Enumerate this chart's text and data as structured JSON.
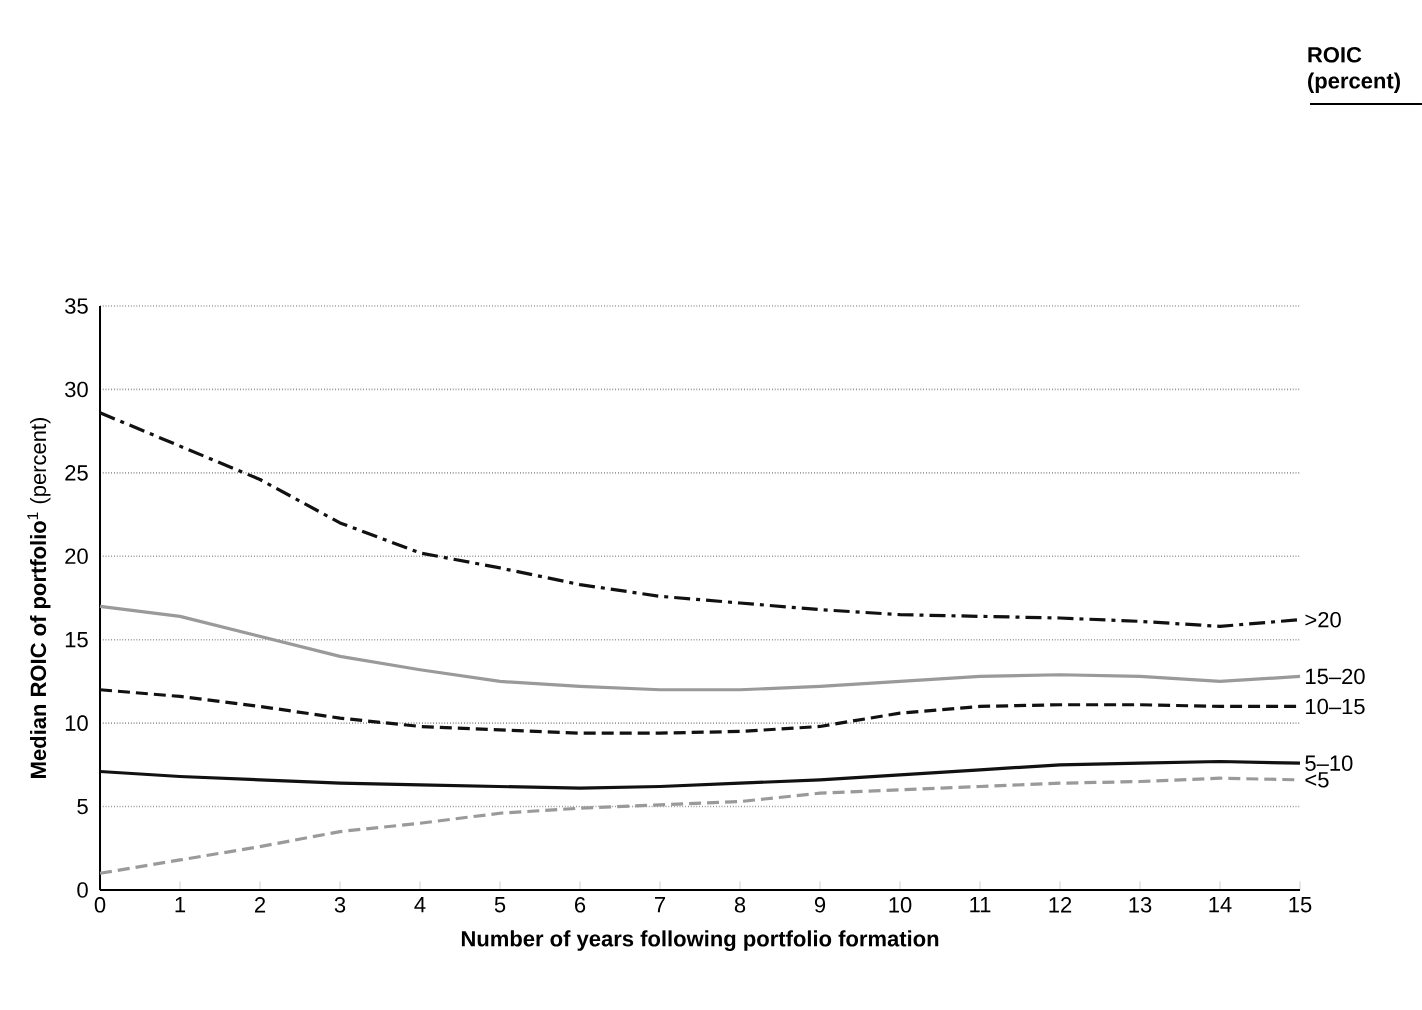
{
  "chart_data": {
    "type": "line",
    "xlabel": "Number of years following portfolio formation",
    "ylabel": "**Median ROIC of portfolio**$^{1}$ (percent)",
    "legend_title": "ROIC (percent)",
    "x": [
      0,
      1,
      2,
      3,
      4,
      5,
      6,
      7,
      8,
      9,
      10,
      11,
      12,
      13,
      14,
      15
    ],
    "series": [
      {
        "name": ">20",
        "color": "#111111",
        "line_style": "dashdot",
        "values": [
          28.6,
          26.6,
          24.6,
          22,
          20.2,
          19.3,
          18.3,
          17.6,
          17.2,
          16.8,
          16.5,
          16.4,
          16.3,
          16.1,
          15.8,
          16.2
        ]
      },
      {
        "name": "15–20",
        "color": "#9a9a9a",
        "line_style": "solid",
        "values": [
          17,
          16.4,
          15.2,
          14,
          13.2,
          12.5,
          12.2,
          12,
          12,
          12.2,
          12.5,
          12.8,
          12.9,
          12.8,
          12.5,
          12.8
        ]
      },
      {
        "name": "10–15",
        "color": "#111111",
        "line_style": "dashed",
        "values": [
          12,
          11.6,
          11,
          10.3,
          9.8,
          9.6,
          9.4,
          9.4,
          9.5,
          9.8,
          10.6,
          11,
          11.1,
          11.1,
          11,
          11
        ]
      },
      {
        "name": "5–10",
        "color": "#111111",
        "line_style": "solid",
        "values": [
          7.1,
          6.8,
          6.6,
          6.4,
          6.3,
          6.2,
          6.1,
          6.2,
          6.4,
          6.6,
          6.9,
          7.2,
          7.5,
          7.6,
          7.7,
          7.6
        ]
      },
      {
        "name": "<5",
        "color": "#9a9a9a",
        "line_style": "dashed",
        "values": [
          1,
          1.8,
          2.6,
          3.5,
          4,
          4.6,
          4.9,
          5.1,
          5.3,
          5.8,
          6,
          6.2,
          6.4,
          6.5,
          6.7,
          6.6
        ]
      }
    ],
    "xlim": [
      0,
      15
    ],
    "xticks": [
      0,
      1,
      2,
      3,
      4,
      5,
      6,
      7,
      8,
      9,
      10,
      11,
      12,
      13,
      14,
      15
    ],
    "ylim": [
      0,
      35
    ],
    "yticks": [
      0,
      5,
      10,
      15,
      20,
      25,
      30,
      35
    ],
    "grid": "y",
    "legend": false,
    "marker": "none"
  }
}
